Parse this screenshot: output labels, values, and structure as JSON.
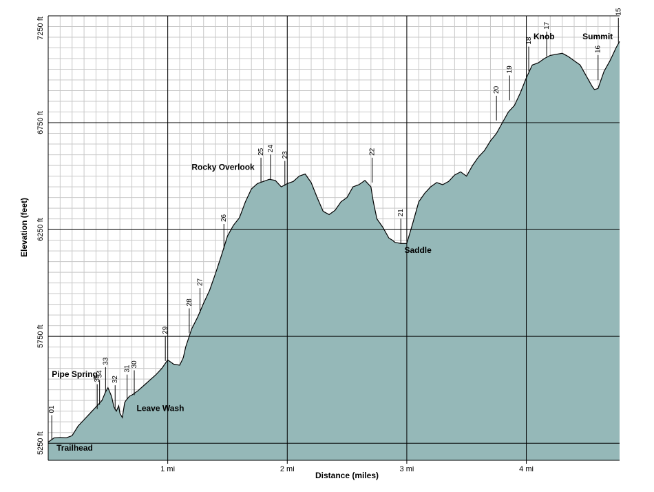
{
  "chart_data": {
    "type": "area",
    "title": "",
    "xlabel": "Distance (miles)",
    "ylabel": "Elevation (feet)",
    "xlim": [
      0,
      4.78
    ],
    "ylim": [
      5170,
      7250
    ],
    "grid": true,
    "colors": {
      "fill": "#95b8b8",
      "line": "#000000",
      "grid": "#c8c8c8",
      "major_grid": "#000000"
    },
    "x_ticks": [
      {
        "value": 1,
        "label": "1 mi"
      },
      {
        "value": 2,
        "label": "2 mi"
      },
      {
        "value": 3,
        "label": "3 mi"
      },
      {
        "value": 4,
        "label": "4 mi"
      }
    ],
    "y_ticks": [
      {
        "value": 5250,
        "label": "5250 ft"
      },
      {
        "value": 5750,
        "label": "5750 ft"
      },
      {
        "value": 6250,
        "label": "6250 ft"
      },
      {
        "value": 6750,
        "label": "6750 ft"
      },
      {
        "value": 7250,
        "label": "7250 ft"
      }
    ],
    "series": [
      {
        "x": [
          0.0,
          0.05,
          0.1,
          0.15,
          0.2,
          0.25,
          0.3,
          0.35,
          0.4,
          0.45,
          0.48,
          0.5,
          0.53,
          0.55,
          0.57,
          0.59,
          0.6,
          0.62,
          0.64,
          0.65,
          0.68,
          0.7,
          0.75,
          0.8,
          0.85,
          0.9,
          0.95,
          1.0,
          1.05,
          1.1,
          1.13,
          1.15,
          1.2,
          1.25,
          1.3,
          1.35,
          1.4,
          1.45,
          1.5,
          1.55,
          1.6,
          1.65,
          1.7,
          1.75,
          1.8,
          1.85,
          1.9,
          1.95,
          2.0,
          2.05,
          2.1,
          2.15,
          2.2,
          2.25,
          2.3,
          2.35,
          2.4,
          2.45,
          2.5,
          2.55,
          2.6,
          2.65,
          2.7,
          2.72,
          2.75,
          2.8,
          2.85,
          2.88,
          2.9,
          2.95,
          3.0,
          3.05,
          3.1,
          3.15,
          3.2,
          3.25,
          3.3,
          3.35,
          3.4,
          3.45,
          3.5,
          3.55,
          3.6,
          3.65,
          3.7,
          3.75,
          3.8,
          3.85,
          3.9,
          3.95,
          4.0,
          4.05,
          4.1,
          4.15,
          4.2,
          4.25,
          4.3,
          4.35,
          4.4,
          4.45,
          4.5,
          4.55,
          4.57,
          4.6,
          4.65,
          4.7,
          4.75,
          4.78
        ],
        "values": [
          5255,
          5275,
          5277,
          5275,
          5285,
          5330,
          5360,
          5390,
          5420,
          5450,
          5490,
          5510,
          5470,
          5420,
          5400,
          5425,
          5390,
          5370,
          5440,
          5450,
          5470,
          5475,
          5495,
          5520,
          5545,
          5570,
          5600,
          5640,
          5620,
          5615,
          5650,
          5700,
          5785,
          5840,
          5905,
          5965,
          6045,
          6130,
          6220,
          6270,
          6305,
          6380,
          6440,
          6465,
          6475,
          6485,
          6480,
          6450,
          6465,
          6475,
          6500,
          6510,
          6470,
          6400,
          6335,
          6320,
          6340,
          6380,
          6400,
          6450,
          6460,
          6480,
          6450,
          6380,
          6300,
          6260,
          6210,
          6200,
          6190,
          6185,
          6185,
          6280,
          6380,
          6420,
          6450,
          6470,
          6460,
          6475,
          6505,
          6520,
          6500,
          6550,
          6590,
          6620,
          6665,
          6700,
          6750,
          6800,
          6830,
          6890,
          6960,
          7020,
          7030,
          7050,
          7065,
          7070,
          7075,
          7060,
          7040,
          7020,
          6970,
          6920,
          6905,
          6910,
          6990,
          7040,
          7100,
          7130
        ]
      }
    ],
    "waypoints": [
      {
        "label": "01",
        "x": 0.03,
        "elev": 5265
      },
      {
        "label": "35",
        "x": 0.41,
        "elev": 5410
      },
      {
        "label": "34",
        "x": 0.43,
        "elev": 5430
      },
      {
        "label": "33",
        "x": 0.48,
        "elev": 5490
      },
      {
        "label": "32",
        "x": 0.56,
        "elev": 5405
      },
      {
        "label": "31",
        "x": 0.66,
        "elev": 5455
      },
      {
        "label": "30",
        "x": 0.72,
        "elev": 5475
      },
      {
        "label": "29",
        "x": 0.98,
        "elev": 5635
      },
      {
        "label": "28",
        "x": 1.18,
        "elev": 5765
      },
      {
        "label": "27",
        "x": 1.27,
        "elev": 5860
      },
      {
        "label": "26",
        "x": 1.47,
        "elev": 6160
      },
      {
        "label": "25",
        "x": 1.78,
        "elev": 6470
      },
      {
        "label": "24",
        "x": 1.86,
        "elev": 6485
      },
      {
        "label": "23",
        "x": 1.98,
        "elev": 6455
      },
      {
        "label": "22",
        "x": 2.71,
        "elev": 6470
      },
      {
        "label": "21",
        "x": 2.95,
        "elev": 6185
      },
      {
        "label": "20",
        "x": 3.75,
        "elev": 6760
      },
      {
        "label": "19",
        "x": 3.86,
        "elev": 6855
      },
      {
        "label": "18",
        "x": 4.02,
        "elev": 6990
      },
      {
        "label": "17",
        "x": 4.17,
        "elev": 7060
      },
      {
        "label": "16",
        "x": 4.6,
        "elev": 6950
      },
      {
        "label": "15",
        "x": 4.77,
        "elev": 7125
      }
    ],
    "annotations": [
      {
        "text": "Trailhead",
        "x": 0.07,
        "y": 5215
      },
      {
        "text": "Pipe Spring",
        "x": 0.03,
        "y": 5560
      },
      {
        "text": "Leave Wash",
        "x": 0.74,
        "y": 5400
      },
      {
        "text": "Rocky Overlook",
        "x": 1.2,
        "y": 6530
      },
      {
        "text": "Saddle",
        "x": 2.98,
        "y": 6140
      },
      {
        "text": "Knob",
        "x": 4.06,
        "y": 7140
      },
      {
        "text": "Summit",
        "x": 4.47,
        "y": 7140
      }
    ]
  }
}
